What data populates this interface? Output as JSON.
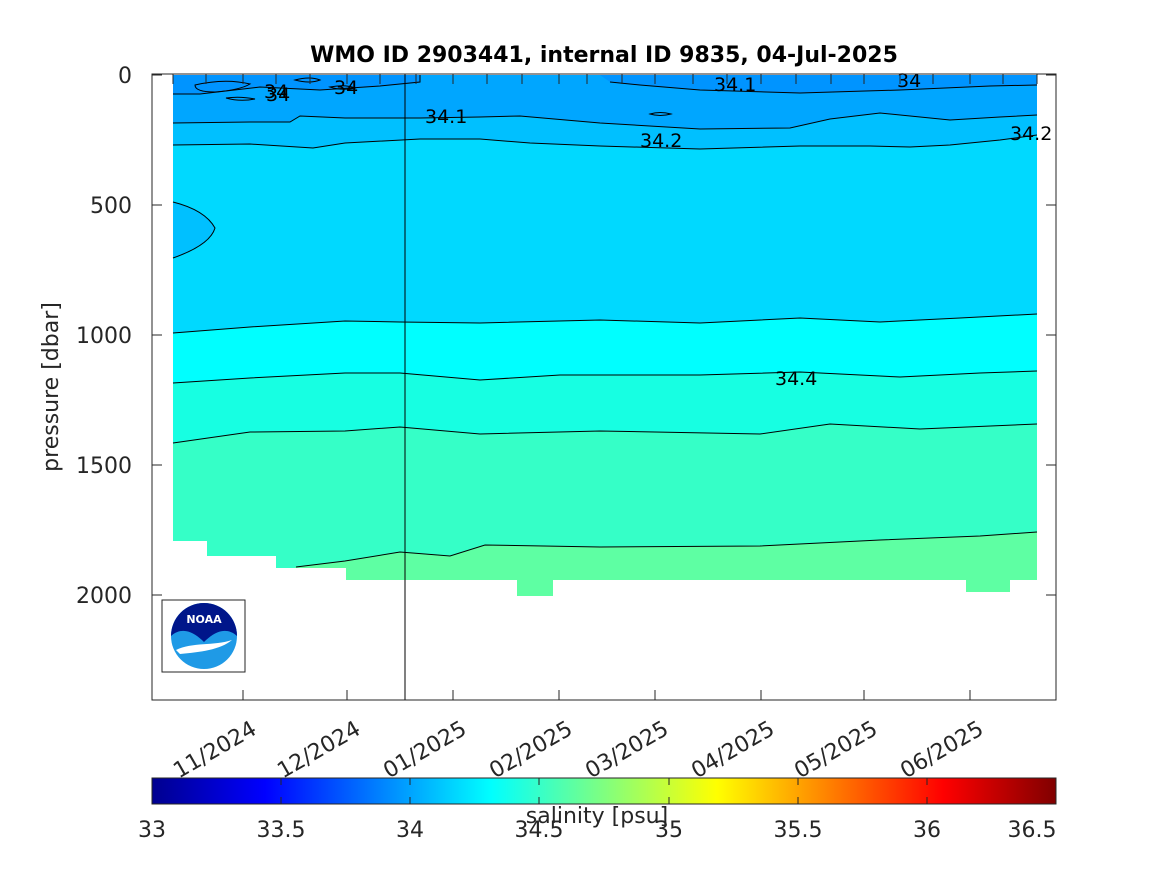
{
  "chart_data": {
    "type": "heatmap",
    "title": "WMO ID 2903441, internal ID 9835, 04-Jul-2025",
    "ylabel": "pressure [dbar]",
    "ylim": [
      2400,
      0
    ],
    "yticks": [
      0,
      500,
      1000,
      1500,
      2000
    ],
    "xtick_labels": [
      "11/2024",
      "12/2024",
      "01/2025",
      "02/2025",
      "03/2025",
      "04/2025",
      "05/2025",
      "06/2025"
    ],
    "colorbar": {
      "label": "salinity [psu]",
      "range": [
        33,
        36.5
      ],
      "ticks": [
        "33",
        "33.5",
        "34",
        "34.5",
        "35",
        "35.5",
        "36",
        "36.5"
      ],
      "colormap": "jet"
    },
    "contour_labels": [
      "34",
      "34",
      "34",
      "34.1",
      "34.1",
      "34",
      "34.2",
      "34.2",
      "34.4"
    ],
    "salinity_bands": [
      {
        "range": "33.9-34",
        "color": "#0094ff"
      },
      {
        "range": "34-34.1",
        "color": "#00a6ff"
      },
      {
        "range": "34.1-34.2",
        "color": "#00c0ff"
      },
      {
        "range": "34.2-34.3",
        "color": "#00d9ff"
      },
      {
        "range": "34.3-34.4",
        "color": "#00ffff"
      },
      {
        "range": "34.4-34.5",
        "color": "#17ffe2"
      },
      {
        "range": "34.5-34.6",
        "color": "#35ffc7"
      },
      {
        "range": "34.6-34.7",
        "color": "#5effa3"
      }
    ]
  },
  "logo": {
    "text": "NOAA",
    "icon": "noaa-logo"
  }
}
